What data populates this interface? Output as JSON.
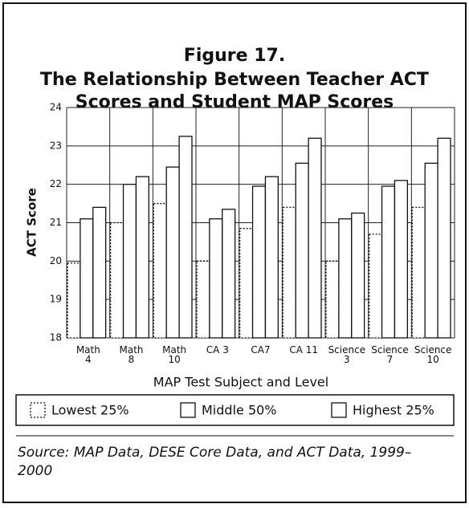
{
  "chart_data": {
    "type": "bar",
    "title": "Figure 17.",
    "subtitle": "The Relationship Between Teacher ACT\nScores and Student MAP Scores",
    "x_label": "MAP Test Subject and Level",
    "y_label": "ACT Score",
    "categories": [
      "Math\n4",
      "Math\n8",
      "Math\n10",
      "CA 3",
      "CA7",
      "CA 11",
      "Science\n3",
      "Science\n7",
      "Science\n10"
    ],
    "series": [
      {
        "name": "Lowest 25%",
        "color": "#ffffff",
        "values": [
          19.95,
          21.0,
          21.5,
          20.0,
          20.85,
          21.4,
          20.0,
          20.7,
          21.4
        ]
      },
      {
        "name": "Middle 50%",
        "color": "#ffffff",
        "values": [
          21.1,
          22.0,
          22.45,
          21.1,
          21.95,
          22.55,
          21.1,
          21.95,
          22.55
        ]
      },
      {
        "name": "Highest 25%",
        "color": "#ffffff",
        "values": [
          21.4,
          22.2,
          23.25,
          21.35,
          22.2,
          23.2,
          21.25,
          22.1,
          23.2
        ]
      }
    ],
    "ylim": [
      18,
      24
    ],
    "yticks": [
      18,
      19,
      20,
      21,
      22,
      23,
      24
    ],
    "grid": true,
    "source": "Source: MAP Data, DESE Core Data, and ACT Data, 1999–2000"
  }
}
